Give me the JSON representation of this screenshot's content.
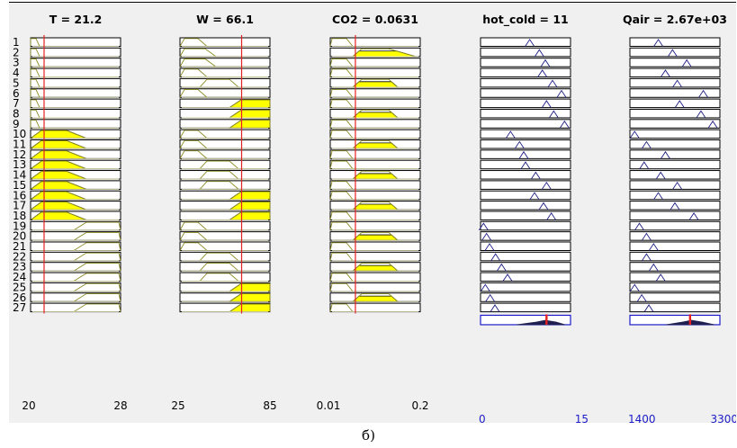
{
  "caption": "б)",
  "rule_count": 27,
  "colors": {
    "fill": "#ffff00",
    "membership": "#8c8c28",
    "membership_faint": "#e2e2b4",
    "output_peak": "#1e1e82",
    "indicator": "#e62020",
    "output_axis": "#1c1cc8"
  },
  "columns": [
    {
      "title": "T = 21.2",
      "value": 21.2,
      "min_label": "20",
      "max_label": "28",
      "min": 20,
      "max": 28,
      "kind": "input",
      "rules": [
        {
          "shape": [
            0.0,
            0.0,
            0.06,
            0.1
          ],
          "fill": 0.0
        },
        {
          "shape": [
            0.0,
            0.0,
            0.06,
            0.1
          ],
          "fill": 0.0
        },
        {
          "shape": [
            0.0,
            0.0,
            0.06,
            0.1
          ],
          "fill": 0.0
        },
        {
          "shape": [
            0.0,
            0.0,
            0.06,
            0.1
          ],
          "fill": 0.0
        },
        {
          "shape": [
            0.0,
            0.0,
            0.06,
            0.1
          ],
          "fill": 0.0
        },
        {
          "shape": [
            0.0,
            0.0,
            0.06,
            0.1
          ],
          "fill": 0.0
        },
        {
          "shape": [
            0.0,
            0.0,
            0.06,
            0.1
          ],
          "fill": 0.0
        },
        {
          "shape": [
            0.0,
            0.0,
            0.06,
            0.1
          ],
          "fill": 0.0
        },
        {
          "shape": [
            0.0,
            0.0,
            0.06,
            0.1
          ],
          "fill": 0.0
        },
        {
          "shape": [
            0.0,
            0.12,
            0.4,
            0.62
          ],
          "fill": 1.0
        },
        {
          "shape": [
            0.0,
            0.12,
            0.4,
            0.62
          ],
          "fill": 1.0
        },
        {
          "shape": [
            0.0,
            0.12,
            0.4,
            0.62
          ],
          "fill": 1.0
        },
        {
          "shape": [
            0.0,
            0.12,
            0.4,
            0.62
          ],
          "fill": 1.0
        },
        {
          "shape": [
            0.0,
            0.12,
            0.4,
            0.62
          ],
          "fill": 1.0
        },
        {
          "shape": [
            0.0,
            0.12,
            0.4,
            0.62
          ],
          "fill": 1.0
        },
        {
          "shape": [
            0.0,
            0.12,
            0.4,
            0.62
          ],
          "fill": 1.0
        },
        {
          "shape": [
            0.0,
            0.12,
            0.4,
            0.62
          ],
          "fill": 1.0
        },
        {
          "shape": [
            0.0,
            0.12,
            0.4,
            0.62
          ],
          "fill": 1.0
        },
        {
          "shape": [
            0.48,
            0.62,
            0.98,
            1.0
          ],
          "fill": 0.0
        },
        {
          "shape": [
            0.48,
            0.62,
            0.98,
            1.0
          ],
          "fill": 0.0
        },
        {
          "shape": [
            0.48,
            0.62,
            0.98,
            1.0
          ],
          "fill": 0.0
        },
        {
          "shape": [
            0.48,
            0.62,
            0.98,
            1.0
          ],
          "fill": 0.0
        },
        {
          "shape": [
            0.48,
            0.62,
            0.98,
            1.0
          ],
          "fill": 0.0
        },
        {
          "shape": [
            0.48,
            0.62,
            0.98,
            1.0
          ],
          "fill": 0.0
        },
        {
          "shape": [
            0.48,
            0.62,
            0.98,
            1.0
          ],
          "fill": 0.0
        },
        {
          "shape": [
            0.48,
            0.62,
            0.98,
            1.0
          ],
          "fill": 0.0
        },
        {
          "shape": [
            0.48,
            0.62,
            0.98,
            1.0
          ],
          "fill": 0.0
        }
      ]
    },
    {
      "title": "W = 66.1",
      "value": 66.1,
      "min_label": "25",
      "max_label": "85",
      "min": 25,
      "max": 85,
      "kind": "input",
      "rules": [
        {
          "shape": [
            0.0,
            0.05,
            0.2,
            0.3
          ],
          "fill": 0.0
        },
        {
          "shape": [
            0.0,
            0.05,
            0.28,
            0.4
          ],
          "fill": 0.0
        },
        {
          "shape": [
            0.0,
            0.05,
            0.28,
            0.4
          ],
          "fill": 0.0
        },
        {
          "shape": [
            0.0,
            0.05,
            0.2,
            0.3
          ],
          "fill": 0.0
        },
        {
          "shape": [
            0.22,
            0.3,
            0.55,
            0.65
          ],
          "fill": 0.0
        },
        {
          "shape": [
            0.0,
            0.05,
            0.2,
            0.3
          ],
          "fill": 0.0
        },
        {
          "shape": [
            0.55,
            0.68,
            1.0,
            1.0
          ],
          "fill": 1.0
        },
        {
          "shape": [
            0.55,
            0.68,
            1.0,
            1.0
          ],
          "fill": 1.0
        },
        {
          "shape": [
            0.55,
            0.68,
            1.0,
            1.0
          ],
          "fill": 1.0
        },
        {
          "shape": [
            0.0,
            0.05,
            0.2,
            0.3
          ],
          "fill": 0.0
        },
        {
          "shape": [
            0.0,
            0.05,
            0.2,
            0.3
          ],
          "fill": 0.0
        },
        {
          "shape": [
            0.0,
            0.05,
            0.2,
            0.3
          ],
          "fill": 0.0
        },
        {
          "shape": [
            0.22,
            0.3,
            0.55,
            0.65
          ],
          "fill": 0.0
        },
        {
          "shape": [
            0.22,
            0.3,
            0.55,
            0.65
          ],
          "fill": 0.0
        },
        {
          "shape": [
            0.22,
            0.3,
            0.55,
            0.65
          ],
          "fill": 0.0
        },
        {
          "shape": [
            0.55,
            0.68,
            1.0,
            1.0
          ],
          "fill": 1.0
        },
        {
          "shape": [
            0.55,
            0.68,
            1.0,
            1.0
          ],
          "fill": 1.0
        },
        {
          "shape": [
            0.55,
            0.68,
            1.0,
            1.0
          ],
          "fill": 1.0
        },
        {
          "shape": [
            0.0,
            0.05,
            0.2,
            0.3
          ],
          "fill": 0.0
        },
        {
          "shape": [
            0.0,
            0.05,
            0.2,
            0.3
          ],
          "fill": 0.0
        },
        {
          "shape": [
            0.0,
            0.05,
            0.2,
            0.3
          ],
          "fill": 0.0
        },
        {
          "shape": [
            0.22,
            0.3,
            0.55,
            0.65
          ],
          "fill": 0.0
        },
        {
          "shape": [
            0.22,
            0.3,
            0.55,
            0.65
          ],
          "fill": 0.0
        },
        {
          "shape": [
            0.22,
            0.3,
            0.55,
            0.65
          ],
          "fill": 0.0
        },
        {
          "shape": [
            0.55,
            0.68,
            1.0,
            1.0
          ],
          "fill": 1.0
        },
        {
          "shape": [
            0.55,
            0.68,
            1.0,
            1.0
          ],
          "fill": 1.0
        },
        {
          "shape": [
            0.55,
            0.68,
            1.0,
            1.0
          ],
          "fill": 1.0
        }
      ]
    },
    {
      "title": "CO2 = 0.0631",
      "value": 0.0631,
      "min_label": "0.01",
      "max_label": "0.2",
      "min": 0.01,
      "max": 0.2,
      "kind": "input",
      "rules": [
        {
          "shape": [
            0.0,
            0.02,
            0.18,
            0.25
          ],
          "fill": 0.0
        },
        {
          "shape": [
            0.25,
            0.35,
            0.65,
            0.95
          ],
          "fill": 0.7
        },
        {
          "shape": [
            0.0,
            0.02,
            0.18,
            0.25
          ],
          "fill": 0.0
        },
        {
          "shape": [
            0.0,
            0.02,
            0.18,
            0.25
          ],
          "fill": 0.0
        },
        {
          "shape": [
            0.25,
            0.35,
            0.65,
            0.75
          ],
          "fill": 0.7
        },
        {
          "shape": [
            0.0,
            0.02,
            0.18,
            0.25
          ],
          "fill": 0.0
        },
        {
          "shape": [
            0.0,
            0.02,
            0.18,
            0.25
          ],
          "fill": 0.0
        },
        {
          "shape": [
            0.25,
            0.35,
            0.65,
            0.75
          ],
          "fill": 0.7
        },
        {
          "shape": [
            0.0,
            0.02,
            0.18,
            0.25
          ],
          "fill": 0.0
        },
        {
          "shape": [
            0.0,
            0.02,
            0.18,
            0.25
          ],
          "fill": 0.0
        },
        {
          "shape": [
            0.25,
            0.35,
            0.65,
            0.75
          ],
          "fill": 0.7
        },
        {
          "shape": [
            0.0,
            0.02,
            0.18,
            0.25
          ],
          "fill": 0.0
        },
        {
          "shape": [
            0.0,
            0.02,
            0.18,
            0.25
          ],
          "fill": 0.0
        },
        {
          "shape": [
            0.25,
            0.35,
            0.65,
            0.75
          ],
          "fill": 0.7
        },
        {
          "shape": [
            0.0,
            0.02,
            0.18,
            0.25
          ],
          "fill": 0.0
        },
        {
          "shape": [
            0.0,
            0.02,
            0.18,
            0.25
          ],
          "fill": 0.0
        },
        {
          "shape": [
            0.25,
            0.35,
            0.65,
            0.75
          ],
          "fill": 0.7
        },
        {
          "shape": [
            0.0,
            0.02,
            0.18,
            0.25
          ],
          "fill": 0.0
        },
        {
          "shape": [
            0.0,
            0.02,
            0.18,
            0.25
          ],
          "fill": 0.0
        },
        {
          "shape": [
            0.25,
            0.35,
            0.65,
            0.75
          ],
          "fill": 0.7
        },
        {
          "shape": [
            0.0,
            0.02,
            0.18,
            0.25
          ],
          "fill": 0.0
        },
        {
          "shape": [
            0.0,
            0.02,
            0.18,
            0.25
          ],
          "fill": 0.0
        },
        {
          "shape": [
            0.25,
            0.35,
            0.65,
            0.75
          ],
          "fill": 0.7
        },
        {
          "shape": [
            0.0,
            0.02,
            0.18,
            0.25
          ],
          "fill": 0.0
        },
        {
          "shape": [
            0.0,
            0.02,
            0.18,
            0.25
          ],
          "fill": 0.0
        },
        {
          "shape": [
            0.25,
            0.35,
            0.65,
            0.75
          ],
          "fill": 0.7
        },
        {
          "shape": [
            0.0,
            0.02,
            0.18,
            0.25
          ],
          "fill": 0.0
        }
      ]
    },
    {
      "title": "hot_cold = 11",
      "value": 11,
      "min_label": "0",
      "max_label": "15",
      "min": 0,
      "max": 15,
      "kind": "output",
      "indicator_value": 11,
      "aggregate_center": 10.8,
      "rules": [
        {
          "center": 8.2,
          "height": 0.8
        },
        {
          "center": 9.8,
          "height": 0.8
        },
        {
          "center": 10.8,
          "height": 0.8
        },
        {
          "center": 10.3,
          "height": 0.8
        },
        {
          "center": 12.0,
          "height": 0.8
        },
        {
          "center": 13.5,
          "height": 0.8
        },
        {
          "center": 11.0,
          "height": 0.8
        },
        {
          "center": 12.2,
          "height": 0.8
        },
        {
          "center": 14.0,
          "height": 0.8
        },
        {
          "center": 5.0,
          "height": 0.8
        },
        {
          "center": 6.5,
          "height": 0.8
        },
        {
          "center": 7.2,
          "height": 0.8
        },
        {
          "center": 7.5,
          "height": 0.8
        },
        {
          "center": 9.2,
          "height": 0.8
        },
        {
          "center": 11.0,
          "height": 0.8
        },
        {
          "center": 9.0,
          "height": 0.8
        },
        {
          "center": 10.5,
          "height": 0.8
        },
        {
          "center": 11.8,
          "height": 0.8
        },
        {
          "center": 0.5,
          "height": 0.8
        },
        {
          "center": 1.0,
          "height": 0.8
        },
        {
          "center": 1.5,
          "height": 0.8
        },
        {
          "center": 2.5,
          "height": 0.8
        },
        {
          "center": 3.5,
          "height": 0.8
        },
        {
          "center": 4.5,
          "height": 0.8
        },
        {
          "center": 0.8,
          "height": 0.8
        },
        {
          "center": 1.6,
          "height": 0.8
        },
        {
          "center": 2.4,
          "height": 0.8
        }
      ]
    },
    {
      "title": "Qair = 2.67e+03",
      "value": 2670,
      "min_label": "1400",
      "max_label": "3300",
      "min": 1400,
      "max": 3300,
      "kind": "output",
      "indicator_value": 2670,
      "aggregate_center": 2700,
      "rules": [
        {
          "center": 2000,
          "height": 0.8
        },
        {
          "center": 2300,
          "height": 0.8
        },
        {
          "center": 2600,
          "height": 0.8
        },
        {
          "center": 2150,
          "height": 0.8
        },
        {
          "center": 2400,
          "height": 0.8
        },
        {
          "center": 2950,
          "height": 0.8
        },
        {
          "center": 2450,
          "height": 0.8
        },
        {
          "center": 2900,
          "height": 0.8
        },
        {
          "center": 3150,
          "height": 0.8
        },
        {
          "center": 1500,
          "height": 0.8
        },
        {
          "center": 1750,
          "height": 0.8
        },
        {
          "center": 2150,
          "height": 0.8
        },
        {
          "center": 1700,
          "height": 0.8
        },
        {
          "center": 2050,
          "height": 0.8
        },
        {
          "center": 2400,
          "height": 0.8
        },
        {
          "center": 2000,
          "height": 0.8
        },
        {
          "center": 2350,
          "height": 0.8
        },
        {
          "center": 2750,
          "height": 0.8
        },
        {
          "center": 1600,
          "height": 0.8
        },
        {
          "center": 1750,
          "height": 0.8
        },
        {
          "center": 1900,
          "height": 0.8
        },
        {
          "center": 1750,
          "height": 0.8
        },
        {
          "center": 1900,
          "height": 0.8
        },
        {
          "center": 2050,
          "height": 0.8
        },
        {
          "center": 1500,
          "height": 0.8
        },
        {
          "center": 1650,
          "height": 0.8
        },
        {
          "center": 1800,
          "height": 0.8
        }
      ]
    }
  ]
}
